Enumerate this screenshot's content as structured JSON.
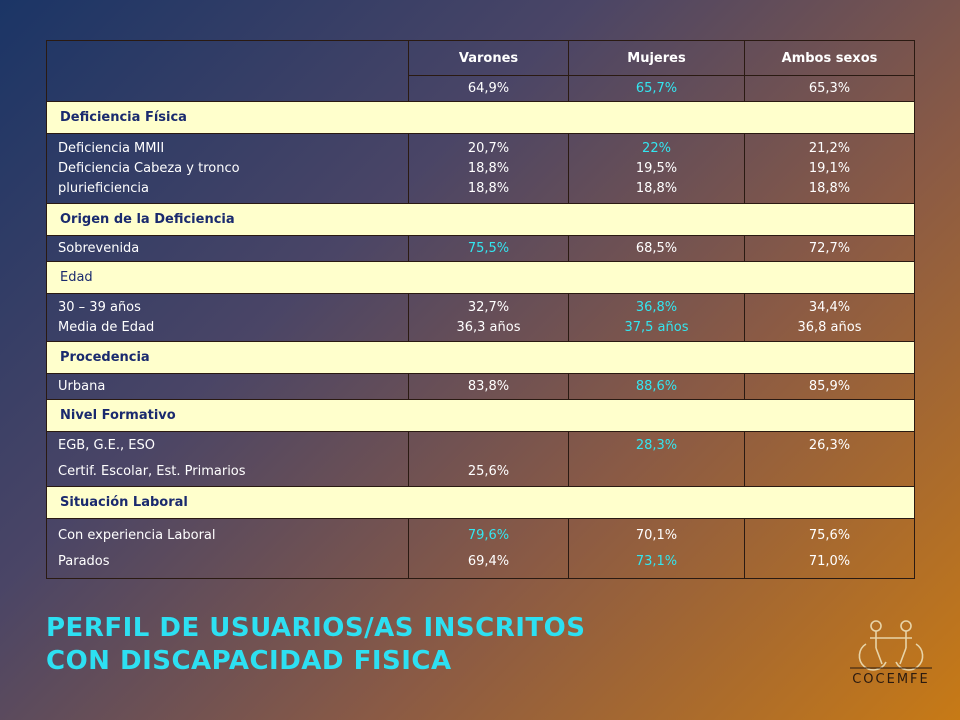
{
  "table": {
    "headers": [
      "",
      "Varones",
      "Mujeres",
      "Ambos sexos"
    ],
    "totals": [
      "64,9%",
      "65,7%",
      "65,3%"
    ],
    "sections": {
      "deficiencia": {
        "title": "Deficiencia Física",
        "labels": [
          "Deficiencia MMII",
          "Deficiencia Cabeza y tronco",
          "plurieficiencia"
        ],
        "varones": [
          "20,7%",
          "18,8%",
          "18,8%"
        ],
        "mujeres": [
          "22%",
          "19,5%",
          "18,8%"
        ],
        "ambos": [
          "21,2%",
          "19,1%",
          "18,8%"
        ]
      },
      "origen": {
        "title": "Origen de la Deficiencia",
        "label": "Sobrevenida",
        "varones": "75,5%",
        "mujeres": "68,5%",
        "ambos": "72,7%"
      },
      "edad": {
        "title": "Edad",
        "labels": [
          "30 – 39 años",
          "Media de Edad"
        ],
        "varones": [
          "32,7%",
          "36,3 años"
        ],
        "mujeres": [
          "36,8%",
          "37,5 años"
        ],
        "ambos": [
          "34,4%",
          "36,8 años"
        ]
      },
      "procedencia": {
        "title": "Procedencia",
        "label": "Urbana",
        "varones": "83,8%",
        "mujeres": "88,6%",
        "ambos": "85,9%"
      },
      "nivel": {
        "title": "Nivel Formativo",
        "labels": [
          "EGB, G.E., ESO",
          "Certif. Escolar, Est. Primarios"
        ],
        "varones": "25,6%",
        "mujeres": "28,3%",
        "ambos": "26,3%"
      },
      "laboral": {
        "title": "Situación Laboral",
        "labels": [
          "Con experiencia Laboral",
          "Parados"
        ],
        "varones": [
          "79,6%",
          "69,4%"
        ],
        "mujeres": [
          "70,1%",
          "73,1%"
        ],
        "ambos": [
          "75,6%",
          "71,0%"
        ]
      }
    }
  },
  "title_lines": [
    "PERFIL DE USUARIOS/AS  INSCRITOS",
    "CON DISCAPACIDAD FISICA"
  ],
  "logo": {
    "text": "COCEMFE"
  },
  "colors": {
    "highlight": "#33e6f0",
    "section_bg": "#ffffcc",
    "section_text": "#1a2a6e",
    "title": "#2de0f2"
  }
}
